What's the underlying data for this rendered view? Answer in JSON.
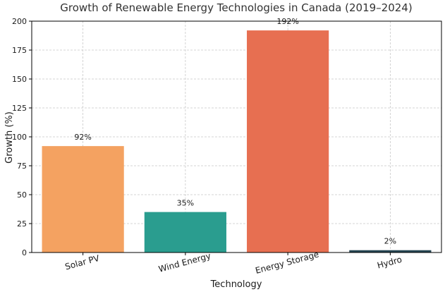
{
  "chart_data": {
    "type": "bar",
    "title": "Growth of Renewable Energy Technologies in Canada (2019–2024)",
    "xlabel": "Technology",
    "ylabel": "Growth (%)",
    "categories": [
      "Solar PV",
      "Wind Energy",
      "Energy Storage",
      "Hydro"
    ],
    "values": [
      92,
      35,
      192,
      2
    ],
    "data_labels": [
      "92%",
      "35%",
      "192%",
      "2%"
    ],
    "colors": [
      "#F4A261",
      "#2A9D8F",
      "#E76F51",
      "#264653"
    ],
    "ylim": [
      0,
      200
    ],
    "yticks": [
      0,
      25,
      50,
      75,
      100,
      125,
      150,
      175,
      200
    ],
    "grid": true,
    "legend": "none"
  }
}
